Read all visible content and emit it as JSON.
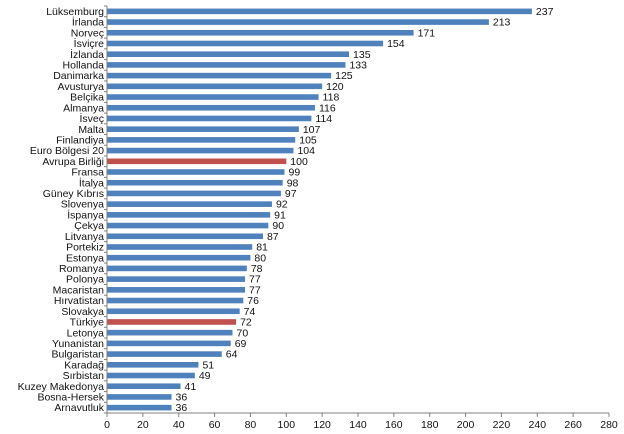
{
  "chart_data": {
    "type": "bar",
    "orientation": "horizontal",
    "title": "",
    "xlabel": "",
    "ylabel": "",
    "xlim": [
      0,
      280
    ],
    "xticks": [
      0,
      20,
      40,
      60,
      80,
      100,
      120,
      140,
      160,
      180,
      200,
      220,
      240,
      260,
      280
    ],
    "grid": false,
    "legend": "none",
    "colors": {
      "default": "#4f81bd",
      "highlight": "#c0504d",
      "axis": "#808080",
      "text": "#111111"
    },
    "highlighted_categories": [
      "Avrupa Birliği",
      "Türkiye"
    ],
    "categories": [
      "Lüksemburg",
      "İrlanda",
      "Norveç",
      "İsviçre",
      "İzlanda",
      "Hollanda",
      "Danimarka",
      "Avusturya",
      "Belçika",
      "Almanya",
      "İsveç",
      "Malta",
      "Finlandiya",
      "Euro Bölgesi 20",
      "Avrupa Birliği",
      "Fransa",
      "İtalya",
      "Güney Kıbrıs",
      "Slovenya",
      "İspanya",
      "Çekya",
      "Litvanya",
      "Portekiz",
      "Estonya",
      "Romanya",
      "Polonya",
      "Macaristan",
      "Hırvatistan",
      "Slovakya",
      "Türkiye",
      "Letonya",
      "Yunanistan",
      "Bulgaristan",
      "Karadağ",
      "Sırbistan",
      "Kuzey Makedonya",
      "Bosna-Hersek",
      "Arnavutluk"
    ],
    "values": [
      237,
      213,
      171,
      154,
      135,
      133,
      125,
      120,
      118,
      116,
      114,
      107,
      105,
      104,
      100,
      99,
      98,
      97,
      92,
      91,
      90,
      87,
      81,
      80,
      78,
      77,
      77,
      76,
      74,
      72,
      70,
      69,
      64,
      51,
      49,
      41,
      36,
      36
    ]
  }
}
